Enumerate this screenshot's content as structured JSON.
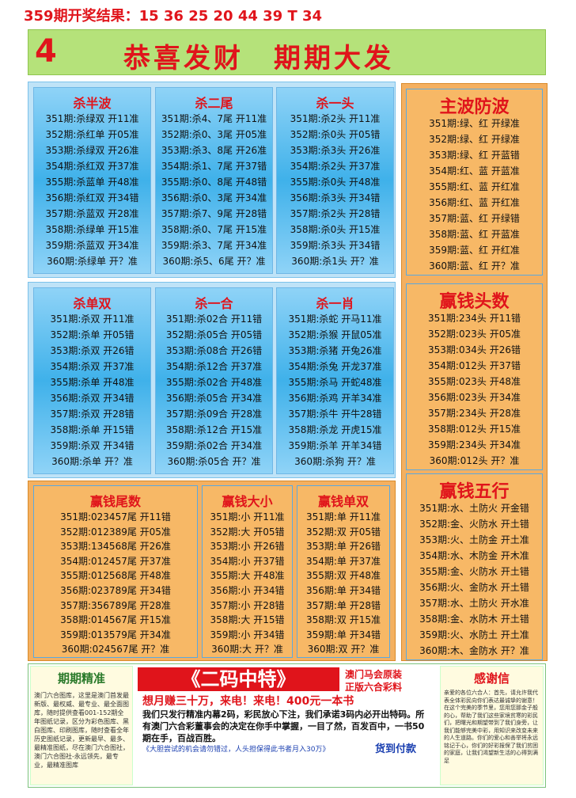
{
  "header": {
    "result": "359期开奖结果：15 36 25 20 44 39 T 34"
  },
  "banner": {
    "number": "4",
    "title": "恭喜发财　期期大发"
  },
  "panels": [
    {
      "title": "杀半波",
      "rows": [
        "351期:杀绿双 开11准",
        "352期:杀红单 开05准",
        "353期:杀绿双 开26准",
        "354期:杀红双 开37准",
        "355期:杀蓝单 开48准",
        "356期:杀红双 开34错",
        "357期:杀蓝双 开28准",
        "358期:杀绿单 开15准",
        "359期:杀蓝双 开34准",
        "360期:杀绿单 开？准"
      ]
    },
    {
      "title": "杀二尾",
      "rows": [
        "351期:杀4、7尾 开11准",
        "352期:杀0、3尾 开05准",
        "353期:杀3、8尾 开26准",
        "354期:杀1、7尾 开37错",
        "355期:杀0、8尾 开48错",
        "356期:杀0、3尾 开34准",
        "357期:杀7、9尾 开28错",
        "358期:杀0、7尾 开15准",
        "359期:杀3、7尾 开34准",
        "360期:杀5、6尾 开？准"
      ]
    },
    {
      "title": "杀一头",
      "rows": [
        "351期:杀2头 开11准",
        "352期:杀0头 开05错",
        "353期:杀3头 开26准",
        "354期:杀2头 开37准",
        "355期:杀0头 开48准",
        "356期:杀3头 开34错",
        "357期:杀2头 开28错",
        "358期:杀0头 开15准",
        "359期:杀3头 开34错",
        "360期:杀1头 开？准"
      ]
    },
    {
      "title": "杀单双",
      "rows": [
        "351期:杀双 开11准",
        "352期:杀单 开05错",
        "353期:杀双 开26错",
        "354期:杀双 开37准",
        "355期:杀单 开48准",
        "356期:杀双 开34错",
        "357期:杀双 开28错",
        "358期:杀单 开15错",
        "359期:杀双 开34错",
        "360期:杀单 开？准"
      ]
    },
    {
      "title": "杀一合",
      "rows": [
        "351期:杀02合 开11错",
        "352期:杀05合 开05错",
        "353期:杀08合 开26错",
        "354期:杀12合 开37准",
        "355期:杀02合 开48准",
        "356期:杀05合 开34准",
        "357期:杀09合 开28准",
        "358期:杀12合 开15准",
        "359期:杀02合 开34准",
        "360期:杀05合 开？准"
      ]
    },
    {
      "title": "杀一肖",
      "rows": [
        "351期:杀蛇 开马11准",
        "352期:杀猴 开鼠05准",
        "353期:杀猪 开兔26准",
        "354期:杀兔 开龙37准",
        "355期:杀马 开蛇48准",
        "356期:杀鸡 开羊34准",
        "357期:杀牛 开牛28错",
        "358期:杀龙 开虎15准",
        "359期:杀羊 开羊34错",
        "360期:杀狗 开？准"
      ]
    },
    {
      "title": "主波防波",
      "rows": [
        "351期:绿、红 开绿准",
        "352期:绿、红 开绿准",
        "353期:绿、红 开蓝错",
        "354期:红、蓝 开蓝准",
        "355期:红、蓝 开红准",
        "356期:红、蓝 开红准",
        "357期:蓝、红 开绿错",
        "358期:蓝、红 开蓝准",
        "359期:蓝、红 开红准",
        "360期:蓝、红 开？准"
      ]
    },
    {
      "title": "赢钱头数",
      "rows": [
        "351期:234头 开11错",
        "352期:023头 开05准",
        "353期:034头 开26错",
        "354期:012头 开37错",
        "355期:023头 开48准",
        "356期:023头 开34准",
        "357期:234头 开28准",
        "358期:012头 开15准",
        "359期:234头 开34准",
        "360期:012头 开？准"
      ]
    },
    {
      "title": "赢钱五行",
      "rows": [
        "351期:水、土防火 开金错",
        "352期:金、火防水 开土错",
        "353期:火、土防金 开土准",
        "354期:水、木防金 开木准",
        "355期:金、火防水 开土错",
        "356期:火、金防水 开土错",
        "357期:水、土防火 开水准",
        "358期:金、水防木 开土错",
        "359期:火、水防土 开土准",
        "360期:木、金防水 开？准"
      ]
    },
    {
      "title": "赢钱尾数",
      "rows": [
        "351期:023457尾 开11错",
        "352期:012389尾 开05准",
        "353期:134568尾 开26准",
        "354期:012457尾 开37准",
        "355期:012568尾 开48准",
        "356期:023789尾 开34错",
        "357期:356789尾 开28准",
        "358期:014567尾 开15准",
        "359期:013579尾 开34准",
        "360期:024567尾 开？准"
      ]
    },
    {
      "title": "赢钱大小",
      "rows": [
        "351期:小 开11准",
        "352期:大 开05错",
        "353期:小 开26错",
        "354期:小 开37错",
        "355期:大 开48准",
        "356期:小 开34错",
        "357期:小 开28错",
        "358期:大 开15错",
        "359期:小 开34错",
        "360期:大 开？准"
      ]
    },
    {
      "title": "赢钱单双",
      "rows": [
        "351期:单 开11准",
        "352期:双 开05错",
        "353期:单 开26错",
        "354期:单 开37准",
        "355期:双 开48准",
        "356期:单 开34错",
        "357期:单 开28错",
        "358期:双 开15准",
        "359期:单 开34错",
        "360期:双 开？准"
      ]
    }
  ],
  "footer": {
    "left": {
      "title": "期期精准",
      "text": "澳门六合图库，这里是澳门首发最新版、最权威、最专业、最全面图库，随时提供查看001-152期全年图纸记录，区分为彩色图库、黑白图库、印刷图库，随时查看全年历史图纸记录，更新最早、最多、最精准图纸，尽在澳门六合图社，澳门六合图社-永远领先，最专业，最精准图库"
    },
    "center": {
      "title": "《二码中特》",
      "tag1": "澳门马会原装",
      "tag2": "正版六合彩料",
      "slogan": "想月赚三十万，来电！来电！400元一本书",
      "text": "我们只发行精准内幕2码，彩民放心下注，我们承诺3码内必开出特码。所有澳门六合彩董事会的决定在你手中掌握，一目了然，百发百中，一书50期在手，百战百胜。",
      "note": "《大胆尝试的机会请勿错过，人头担保得此书者月入30万》",
      "pay": "货到付款"
    },
    "right": {
      "title": "感谢信",
      "text": "亲爱的各位六合人：首先，请允许我代表全体彩民向你们表达最诚挚的谢意！在这个完美的季节里，您用您那金子般的心，帮助了我们这些家境贫寒的彩民们，把曙光和期望带到了我们身旁，让我们能够完美中彩，用知识来改变未来的人生道路。你们的爱心和善举将永远铭记于心，你们的好彩报保了我们贫困的家庭，让我们渴望新生活的心得到满足"
    }
  }
}
